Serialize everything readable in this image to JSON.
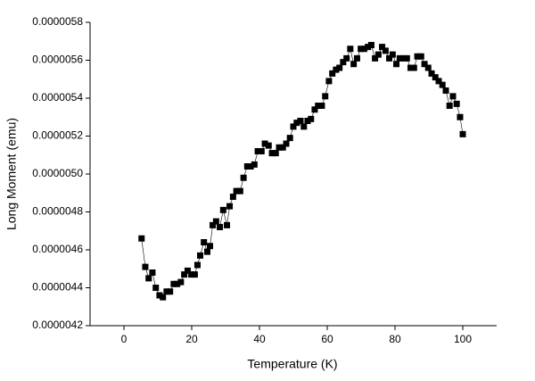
{
  "chart_data": {
    "type": "line",
    "marker": "square",
    "color": "#000000",
    "xlabel": "Temperature (K)",
    "ylabel": "Long Moment (emu)",
    "xlim": [
      -10,
      110
    ],
    "xticks": [
      0,
      20,
      40,
      60,
      80,
      100
    ],
    "ylim": [
      4.2e-06,
      5.8e-06
    ],
    "yticks": [
      4.2e-06,
      4.4e-06,
      4.6e-06,
      4.8e-06,
      {
        "value": 5e-06,
        "label": "0.0000050"
      },
      5.2e-06,
      5.4e-06,
      5.6e-06,
      5.8e-06
    ],
    "x": [
      5.2,
      6.3,
      7.3,
      8.4,
      9.4,
      10.5,
      11.5,
      12.6,
      13.6,
      14.7,
      15.7,
      16.8,
      17.8,
      18.8,
      19.9,
      20.9,
      21.7,
      22.5,
      23.6,
      24.6,
      25.4,
      26.2,
      27.2,
      28.3,
      29.3,
      30.4,
      31.2,
      32.2,
      33.2,
      34.3,
      35.3,
      36.4,
      37.4,
      38.5,
      39.5,
      40.6,
      41.6,
      42.7,
      43.7,
      44.8,
      45.8,
      46.9,
      47.9,
      49.0,
      50.0,
      51.0,
      52.1,
      53.1,
      54.2,
      55.2,
      56.3,
      57.3,
      58.4,
      59.4,
      60.5,
      61.5,
      62.6,
      63.6,
      64.7,
      65.7,
      66.8,
      67.8,
      68.8,
      69.9,
      70.9,
      72.0,
      73.0,
      74.1,
      75.1,
      76.2,
      77.2,
      78.3,
      79.3,
      80.4,
      81.4,
      82.5,
      83.5,
      84.6,
      85.6,
      86.6,
      87.7,
      88.7,
      89.8,
      90.8,
      91.9,
      92.9,
      94.0,
      95.0,
      96.1,
      97.1,
      98.2,
      99.2,
      100.0
    ],
    "values": [
      4.66e-06,
      4.51e-06,
      4.45e-06,
      4.48e-06,
      4.4e-06,
      4.36e-06,
      4.35e-06,
      4.38e-06,
      4.38e-06,
      4.42e-06,
      4.42e-06,
      4.43e-06,
      4.47e-06,
      4.49e-06,
      4.47e-06,
      4.47e-06,
      4.52e-06,
      4.57e-06,
      4.64e-06,
      4.59e-06,
      4.62e-06,
      4.73e-06,
      4.75e-06,
      4.72e-06,
      4.81e-06,
      4.73e-06,
      4.83e-06,
      4.88e-06,
      4.91e-06,
      4.91e-06,
      4.98e-06,
      5.04e-06,
      5.04e-06,
      5.05e-06,
      5.12e-06,
      5.12e-06,
      5.16e-06,
      5.15e-06,
      5.11e-06,
      5.11e-06,
      5.14e-06,
      5.14e-06,
      5.16e-06,
      5.19e-06,
      5.25e-06,
      5.27e-06,
      5.28e-06,
      5.25e-06,
      5.28e-06,
      5.29e-06,
      5.34e-06,
      5.36e-06,
      5.36e-06,
      5.41e-06,
      5.49e-06,
      5.53e-06,
      5.55e-06,
      5.56e-06,
      5.59e-06,
      5.61e-06,
      5.66e-06,
      5.58e-06,
      5.61e-06,
      5.66e-06,
      5.66e-06,
      5.67e-06,
      5.68e-06,
      5.61e-06,
      5.63e-06,
      5.67e-06,
      5.65e-06,
      5.61e-06,
      5.63e-06,
      5.58e-06,
      5.61e-06,
      5.61e-06,
      5.61e-06,
      5.56e-06,
      5.56e-06,
      5.62e-06,
      5.62e-06,
      5.58e-06,
      5.56e-06,
      5.53e-06,
      5.51e-06,
      5.49e-06,
      5.47e-06,
      5.44e-06,
      5.36e-06,
      5.41e-06,
      5.37e-06,
      5.3e-06,
      5.21e-06
    ]
  }
}
